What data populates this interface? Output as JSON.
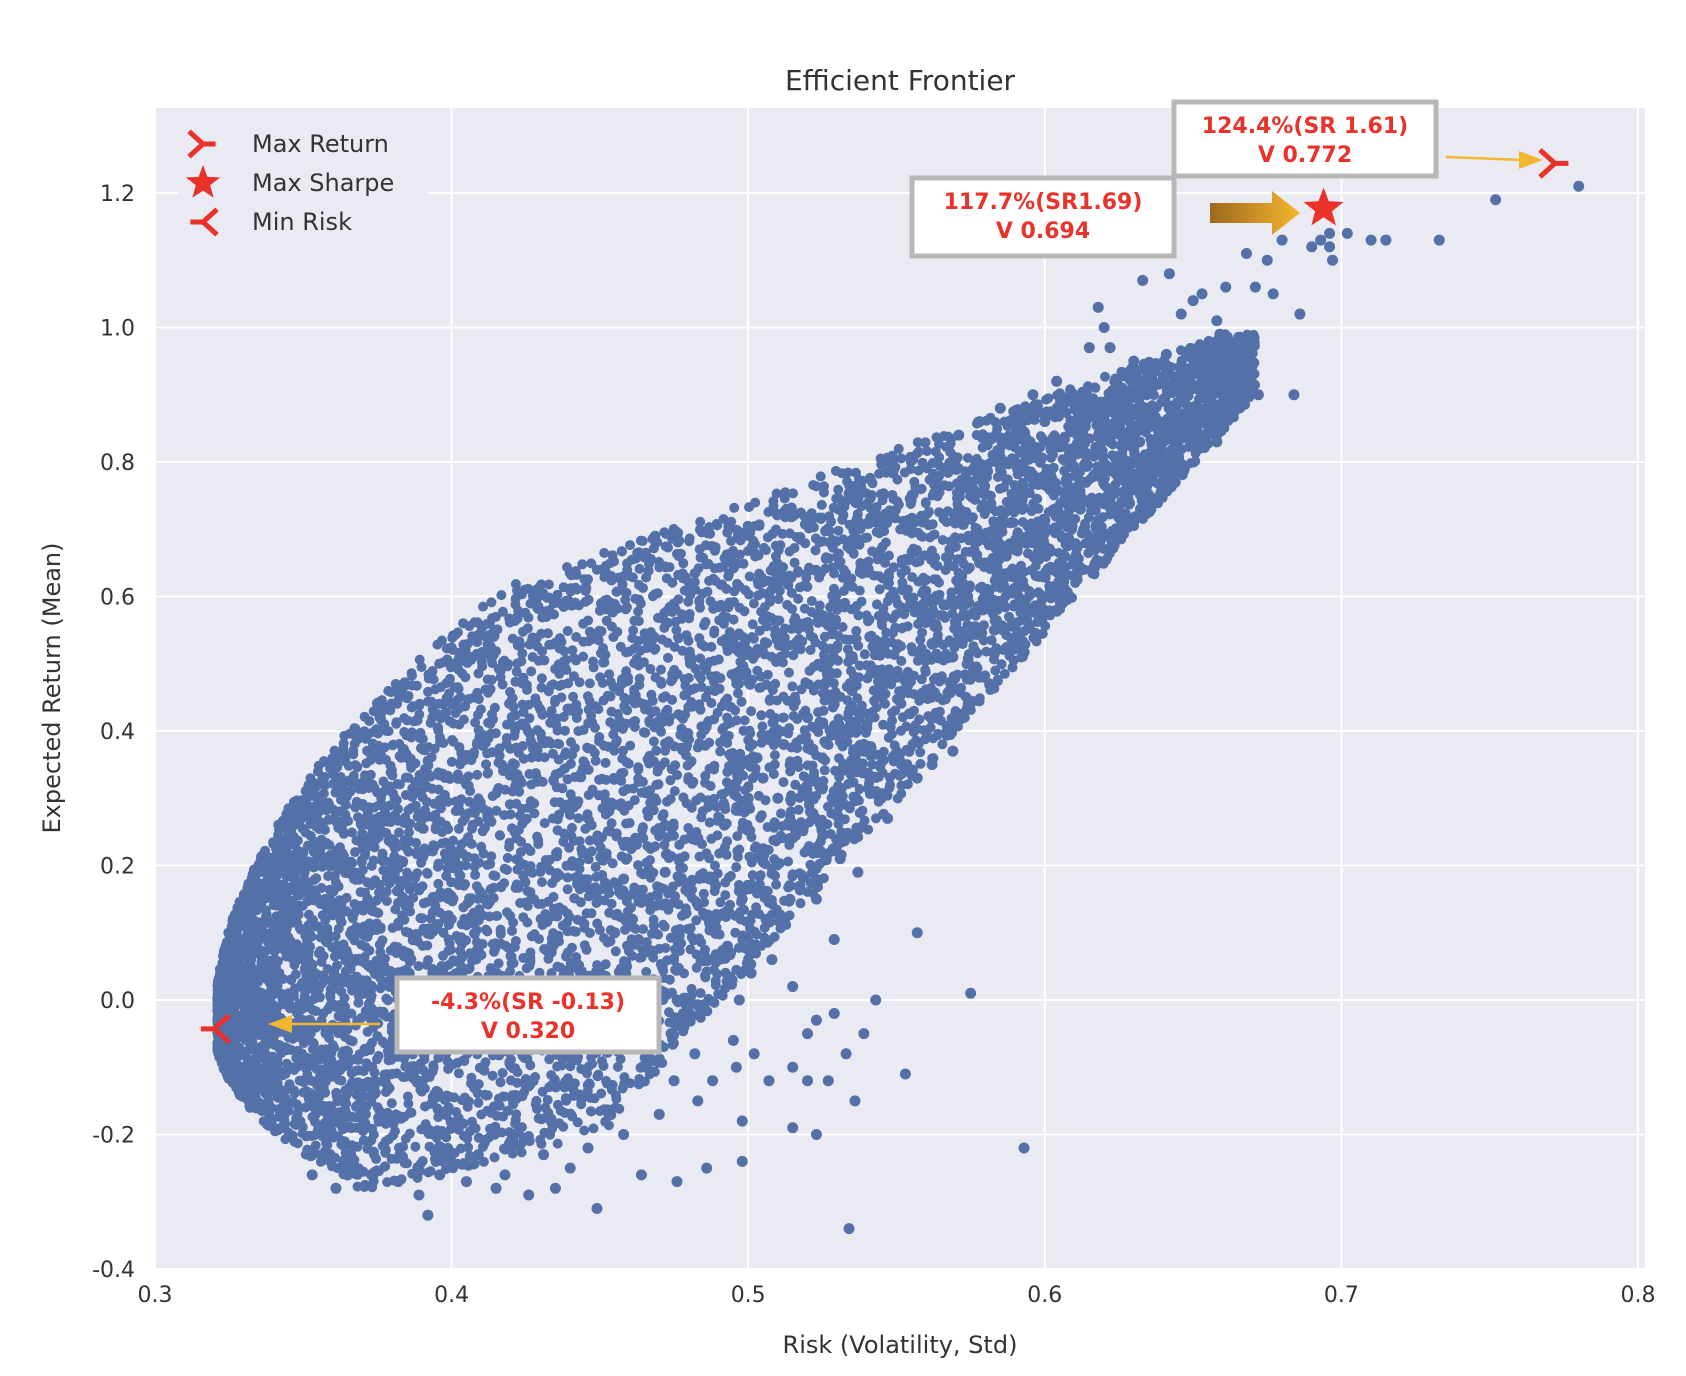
{
  "chart_data": {
    "type": "scatter",
    "title": "Efficient Frontier",
    "xlabel": "Risk (Volatility, Std)",
    "ylabel": "Expected Return (Mean)",
    "xlim": [
      0.3,
      0.8
    ],
    "ylim": [
      -0.4,
      1.3
    ],
    "x_ticks": [
      0.3,
      0.4,
      0.5,
      0.6,
      0.7,
      0.8
    ],
    "y_ticks": [
      -0.4,
      -0.2,
      0.0,
      0.2,
      0.4,
      0.6,
      0.8,
      1.0,
      1.2
    ],
    "x_tick_labels": [
      "0.3",
      "0.4",
      "0.5",
      "0.6",
      "0.7",
      "0.8"
    ],
    "y_tick_labels": [
      "-0.4",
      "-0.2",
      "0.0",
      "0.2",
      "0.4",
      "0.6",
      "0.8",
      "1.0",
      "1.2"
    ],
    "grid": true,
    "legend_position": "top-left",
    "point_color": "#5470a8",
    "background_color": "#eaeaf2",
    "outliers": [
      [
        0.78,
        1.21
      ],
      [
        0.752,
        1.19
      ],
      [
        0.733,
        1.13
      ],
      [
        0.715,
        1.13
      ],
      [
        0.71,
        1.13
      ],
      [
        0.702,
        1.14
      ],
      [
        0.696,
        1.14
      ],
      [
        0.696,
        1.12
      ],
      [
        0.693,
        1.13
      ],
      [
        0.697,
        1.1
      ],
      [
        0.69,
        1.12
      ],
      [
        0.68,
        1.13
      ],
      [
        0.675,
        1.1
      ],
      [
        0.668,
        1.11
      ],
      [
        0.677,
        1.05
      ],
      [
        0.671,
        1.06
      ],
      [
        0.661,
        1.06
      ],
      [
        0.686,
        1.02
      ],
      [
        0.65,
        1.04
      ],
      [
        0.653,
        1.05
      ],
      [
        0.642,
        1.08
      ],
      [
        0.633,
        1.07
      ],
      [
        0.646,
        1.02
      ],
      [
        0.658,
        1.01
      ],
      [
        0.659,
        0.99
      ],
      [
        0.641,
        0.96
      ],
      [
        0.63,
        0.95
      ],
      [
        0.62,
        1.0
      ],
      [
        0.622,
        0.97
      ],
      [
        0.618,
        1.03
      ],
      [
        0.615,
        0.97
      ],
      [
        0.642,
        0.93
      ],
      [
        0.653,
        0.92
      ],
      [
        0.66,
        0.91
      ],
      [
        0.646,
        0.9
      ],
      [
        0.665,
        0.9
      ],
      [
        0.672,
        0.9
      ],
      [
        0.684,
        0.9
      ],
      [
        0.663,
        0.89
      ],
      [
        0.658,
        0.83
      ],
      [
        0.64,
        0.85
      ],
      [
        0.639,
        0.82
      ],
      [
        0.632,
        0.83
      ],
      [
        0.625,
        0.8
      ],
      [
        0.628,
        0.84
      ],
      [
        0.62,
        0.87
      ],
      [
        0.634,
        0.88
      ],
      [
        0.611,
        0.84
      ],
      [
        0.6,
        0.86
      ],
      [
        0.609,
        0.81
      ],
      [
        0.595,
        0.83
      ],
      [
        0.59,
        0.8
      ],
      [
        0.589,
        0.74
      ],
      [
        0.6,
        0.78
      ],
      [
        0.613,
        0.77
      ],
      [
        0.63,
        0.78
      ],
      [
        0.622,
        0.74
      ],
      [
        0.612,
        0.73
      ],
      [
        0.604,
        0.73
      ],
      [
        0.609,
        0.7
      ],
      [
        0.596,
        0.68
      ],
      [
        0.584,
        0.71
      ],
      [
        0.576,
        0.69
      ],
      [
        0.568,
        0.67
      ],
      [
        0.571,
        0.62
      ],
      [
        0.556,
        0.58
      ],
      [
        0.56,
        0.6
      ],
      [
        0.574,
        0.6
      ],
      [
        0.583,
        0.55
      ],
      [
        0.576,
        0.49
      ],
      [
        0.569,
        0.51
      ],
      [
        0.562,
        0.53
      ],
      [
        0.552,
        0.61
      ],
      [
        0.546,
        0.57
      ],
      [
        0.541,
        0.54
      ],
      [
        0.55,
        0.48
      ],
      [
        0.545,
        0.45
      ],
      [
        0.56,
        0.4
      ],
      [
        0.569,
        0.37
      ],
      [
        0.562,
        0.35
      ],
      [
        0.557,
        0.33
      ],
      [
        0.553,
        0.34
      ],
      [
        0.547,
        0.27
      ],
      [
        0.541,
        0.33
      ],
      [
        0.536,
        0.35
      ],
      [
        0.528,
        0.4
      ],
      [
        0.52,
        0.42
      ],
      [
        0.525,
        0.36
      ],
      [
        0.529,
        0.31
      ],
      [
        0.521,
        0.28
      ],
      [
        0.516,
        0.25
      ],
      [
        0.51,
        0.3
      ],
      [
        0.505,
        0.33
      ],
      [
        0.5,
        0.3
      ],
      [
        0.492,
        0.26
      ],
      [
        0.483,
        0.24
      ],
      [
        0.477,
        0.21
      ],
      [
        0.487,
        0.18
      ],
      [
        0.48,
        0.16
      ],
      [
        0.472,
        0.19
      ],
      [
        0.465,
        0.15
      ],
      [
        0.458,
        0.18
      ],
      [
        0.461,
        0.12
      ],
      [
        0.455,
        0.1
      ],
      [
        0.463,
        0.09
      ],
      [
        0.471,
        0.05
      ],
      [
        0.468,
        0.03
      ],
      [
        0.476,
        0.0
      ],
      [
        0.48,
        -0.03
      ],
      [
        0.474,
        -0.05
      ],
      [
        0.482,
        -0.08
      ],
      [
        0.488,
        -0.12
      ],
      [
        0.496,
        -0.1
      ],
      [
        0.507,
        -0.12
      ],
      [
        0.515,
        -0.1
      ],
      [
        0.52,
        -0.12
      ],
      [
        0.527,
        -0.12
      ],
      [
        0.533,
        -0.08
      ],
      [
        0.52,
        -0.05
      ],
      [
        0.523,
        -0.03
      ],
      [
        0.529,
        -0.02
      ],
      [
        0.539,
        -0.05
      ],
      [
        0.553,
        -0.11
      ],
      [
        0.593,
        -0.22
      ],
      [
        0.575,
        0.01
      ],
      [
        0.557,
        0.1
      ],
      [
        0.523,
        0.15
      ],
      [
        0.514,
        0.17
      ],
      [
        0.506,
        0.12
      ],
      [
        0.498,
        0.15
      ],
      [
        0.489,
        0.17
      ],
      [
        0.493,
        0.08
      ],
      [
        0.501,
        0.04
      ],
      [
        0.508,
        0.06
      ],
      [
        0.497,
        0.0
      ],
      [
        0.495,
        -0.06
      ],
      [
        0.502,
        -0.08
      ],
      [
        0.498,
        -0.18
      ],
      [
        0.515,
        -0.19
      ],
      [
        0.523,
        -0.2
      ],
      [
        0.536,
        -0.15
      ],
      [
        0.498,
        -0.24
      ],
      [
        0.486,
        -0.25
      ],
      [
        0.476,
        -0.27
      ],
      [
        0.464,
        -0.26
      ],
      [
        0.449,
        -0.31
      ],
      [
        0.435,
        -0.28
      ],
      [
        0.426,
        -0.29
      ],
      [
        0.534,
        -0.34
      ],
      [
        0.392,
        -0.32
      ],
      [
        0.389,
        -0.29
      ],
      [
        0.382,
        -0.27
      ],
      [
        0.373,
        -0.26
      ],
      [
        0.361,
        -0.28
      ],
      [
        0.353,
        -0.26
      ],
      [
        0.596,
        0.9
      ],
      [
        0.604,
        0.92
      ],
      [
        0.585,
        0.88
      ],
      [
        0.578,
        0.86
      ],
      [
        0.571,
        0.84
      ],
      [
        0.654,
        0.96
      ],
      [
        0.626,
        0.91
      ],
      [
        0.648,
        0.85
      ],
      [
        0.644,
        0.77
      ],
      [
        0.606,
        0.64
      ],
      [
        0.598,
        0.63
      ],
      [
        0.591,
        0.59
      ],
      [
        0.583,
        0.58
      ],
      [
        0.57,
        0.56
      ],
      [
        0.578,
        0.65
      ],
      [
        0.587,
        0.66
      ],
      [
        0.535,
        0.46
      ],
      [
        0.529,
        0.44
      ],
      [
        0.54,
        0.41
      ],
      [
        0.512,
        0.38
      ],
      [
        0.503,
        0.36
      ],
      [
        0.496,
        0.34
      ],
      [
        0.459,
        0.05
      ],
      [
        0.452,
        0.02
      ],
      [
        0.447,
        -0.02
      ],
      [
        0.455,
        -0.04
      ],
      [
        0.461,
        -0.07
      ],
      [
        0.468,
        -0.09
      ],
      [
        0.475,
        -0.12
      ],
      [
        0.483,
        -0.15
      ],
      [
        0.47,
        -0.17
      ],
      [
        0.458,
        -0.2
      ],
      [
        0.446,
        -0.22
      ],
      [
        0.44,
        -0.25
      ],
      [
        0.431,
        -0.23
      ],
      [
        0.418,
        -0.26
      ],
      [
        0.409,
        -0.23
      ],
      [
        0.415,
        -0.28
      ],
      [
        0.405,
        -0.27
      ],
      [
        0.396,
        -0.26
      ],
      [
        0.515,
        0.02
      ],
      [
        0.543,
        0.0
      ],
      [
        0.529,
        0.09
      ],
      [
        0.537,
        0.19
      ],
      [
        0.531,
        0.21
      ]
    ],
    "special_points": [
      {
        "name": "Max Return",
        "x": 0.772,
        "y": 1.244,
        "marker": "tri_left",
        "annotation_line1": "124.4%(SR 1.61)",
        "annotation_line2": "V 0.772"
      },
      {
        "name": "Max Sharpe",
        "x": 0.694,
        "y": 1.177,
        "marker": "star",
        "annotation_line1": "117.7%(SR1.69)",
        "annotation_line2": "V 0.694"
      },
      {
        "name": "Min Risk",
        "x": 0.32,
        "y": -0.043,
        "marker": "tri_right",
        "annotation_line1": "-4.3%(SR -0.13)",
        "annotation_line2": "V 0.320"
      }
    ],
    "marker_color": "#e8322a",
    "annotation_text_color": "#e8322a",
    "arrow_color": "#f2b630"
  }
}
